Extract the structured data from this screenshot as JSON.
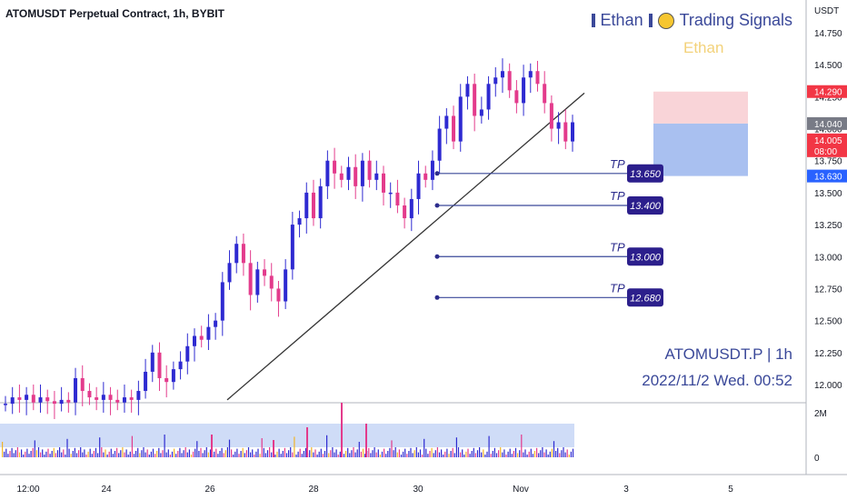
{
  "header": {
    "title": "ATOMUSDT Perpetual Contract, 1h, BYBIT"
  },
  "brand": {
    "name": "Ethan",
    "separator": "▮",
    "signals": "Trading Signals",
    "subname": "Ethan",
    "sun_icon": "sun-icon",
    "colors": {
      "text": "#3a4899",
      "sub": "#f3d27a",
      "sun": "#f6c630"
    }
  },
  "watermark": {
    "symbol_line": "ATOMUSDT.P | 1h",
    "date_line": "2022/11/2 Wed. 00:52"
  },
  "price_axis": {
    "unit": "USDT",
    "ticks": [
      "14.750",
      "14.500",
      "14.250",
      "14.000",
      "13.750",
      "13.500",
      "13.250",
      "13.000",
      "12.750",
      "12.500",
      "12.250",
      "12.000"
    ],
    "labels": [
      {
        "text": "14.290",
        "color": "#f23645"
      },
      {
        "text": "14.040",
        "color": "#787b86"
      },
      {
        "text": "14.005",
        "sub": "08:00",
        "color": "#f23645"
      },
      {
        "text": "13.630",
        "color": "#2962ff"
      }
    ]
  },
  "volume_axis": {
    "ticks": [
      "2M",
      "0"
    ]
  },
  "time_axis": {
    "ticks": [
      "12:00",
      "24",
      "26",
      "28",
      "30",
      "Nov",
      "3",
      "5"
    ]
  },
  "targets": [
    {
      "label": "TP",
      "value": "13.650"
    },
    {
      "label": "TP",
      "value": "13.400"
    },
    {
      "label": "TP",
      "value": "13.000"
    },
    {
      "label": "TP",
      "value": "12.680"
    }
  ],
  "chart_data": {
    "type": "candlestick",
    "symbol": "ATOMUSDT Perpetual Contract",
    "interval": "1h",
    "exchange": "BYBIT",
    "ylim": [
      11.85,
      14.95
    ],
    "candles_approx_close": [
      11.85,
      11.9,
      11.88,
      11.92,
      11.86,
      11.9,
      11.87,
      11.85,
      11.88,
      11.86,
      12.05,
      11.95,
      11.9,
      11.88,
      11.92,
      11.88,
      11.86,
      11.9,
      11.88,
      11.95,
      12.1,
      12.25,
      12.05,
      12.02,
      12.12,
      12.18,
      12.3,
      12.38,
      12.35,
      12.45,
      12.5,
      12.8,
      12.95,
      13.1,
      12.95,
      12.7,
      12.9,
      12.85,
      12.75,
      12.65,
      12.9,
      13.25,
      13.3,
      13.5,
      13.3,
      13.55,
      13.75,
      13.65,
      13.6,
      13.7,
      13.55,
      13.75,
      13.6,
      13.65,
      13.5,
      13.5,
      13.4,
      13.3,
      13.45,
      13.65,
      13.6,
      13.75,
      14.0,
      14.1,
      13.9,
      14.25,
      14.35,
      14.1,
      14.15,
      14.35,
      14.4,
      14.45,
      14.3,
      14.2,
      14.4,
      14.45,
      14.35,
      14.2,
      14.0,
      14.05,
      13.9,
      14.05
    ],
    "trendline": {
      "from": 11.88,
      "to": 14.25
    },
    "position": {
      "stop": 14.29,
      "entry": 14.04,
      "target": 13.63
    },
    "take_profits": [
      13.65,
      13.4,
      13.0,
      12.68
    ],
    "last_price": 14.005,
    "countdown": "08:00"
  }
}
